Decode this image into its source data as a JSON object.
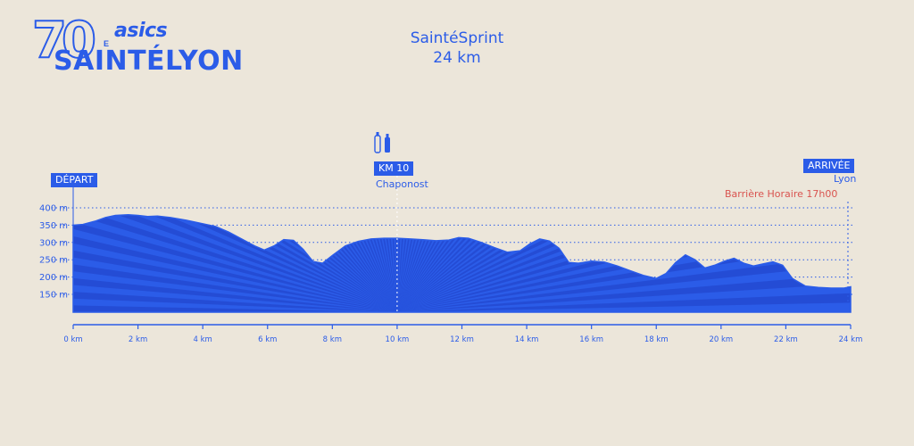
{
  "logo": {
    "number": "70",
    "superscript": "E",
    "brand": "asics",
    "wordmark": "SAINTÉLYON"
  },
  "header": {
    "race_name": "SaintéSprint",
    "distance": "24 km"
  },
  "markers": {
    "start_label": "DÉPART",
    "checkpoint_label": "KM 10",
    "checkpoint_place": "Chaponost",
    "finish_label": "ARRIVÉE",
    "finish_place": "Lyon",
    "cutoff_text": "Barrière Horaire 17h00"
  },
  "colors": {
    "background": "#ece6da",
    "primary": "#2b5ce8",
    "stripe_dark": "#1f3fc4",
    "cutoff": "#d9534f"
  },
  "icons": {
    "aid_station": "water-bottle-icon"
  },
  "chart_data": {
    "type": "area",
    "title": "SaintéSprint",
    "subtitle": "24 km",
    "xlabel": "",
    "ylabel": "",
    "x_unit": "km",
    "y_unit": "m",
    "xlim": [
      0,
      24
    ],
    "ylim": [
      100,
      420
    ],
    "x_ticks": [
      0,
      2,
      4,
      6,
      8,
      10,
      12,
      14,
      16,
      18,
      20,
      22,
      24
    ],
    "x_tick_labels": [
      "0 km",
      "2 km",
      "4 km",
      "6 km",
      "8 km",
      "10 km",
      "12 km",
      "14 km",
      "16 km",
      "18 km",
      "20 km",
      "22 km",
      "24 km"
    ],
    "y_ticks": [
      150,
      200,
      250,
      300,
      350,
      400
    ],
    "y_tick_labels": [
      "150 m",
      "200 m",
      "250 m",
      "300 m",
      "350 m",
      "400 m"
    ],
    "grid": "horizontal-dotted",
    "series": [
      {
        "x": [
          0,
          0.3,
          0.7,
          1.0,
          1.3,
          1.7,
          2.0,
          2.3,
          2.6,
          3.0,
          3.5,
          4.0,
          4.4,
          4.8,
          5.2,
          5.6,
          5.9,
          6.2,
          6.5,
          6.8,
          7.1,
          7.4,
          7.7,
          8.0,
          8.4,
          8.8,
          9.2,
          9.6,
          10.0,
          10.4,
          10.8,
          11.2,
          11.6,
          11.9,
          12.2,
          12.6,
          13.0,
          13.4,
          13.8,
          14.1,
          14.4,
          14.7,
          15.0,
          15.3,
          15.6,
          16.0,
          16.4,
          16.8,
          17.2,
          17.6,
          18.0,
          18.3,
          18.6,
          18.9,
          19.2,
          19.5,
          19.8,
          20.1,
          20.4,
          20.7,
          21.0,
          21.3,
          21.6,
          21.9,
          22.2,
          22.6,
          23.0,
          23.4,
          23.8,
          24.0
        ],
        "y": [
          350,
          352,
          362,
          372,
          378,
          380,
          378,
          375,
          376,
          372,
          364,
          354,
          346,
          330,
          310,
          290,
          278,
          290,
          308,
          306,
          280,
          245,
          240,
          262,
          290,
          303,
          310,
          312,
          312,
          310,
          308,
          305,
          307,
          314,
          312,
          300,
          285,
          272,
          276,
          296,
          310,
          304,
          283,
          242,
          240,
          246,
          243,
          232,
          218,
          205,
          196,
          210,
          242,
          264,
          250,
          226,
          234,
          246,
          254,
          240,
          232,
          238,
          244,
          234,
          196,
          174,
          170,
          168,
          168,
          172
        ]
      }
    ]
  }
}
